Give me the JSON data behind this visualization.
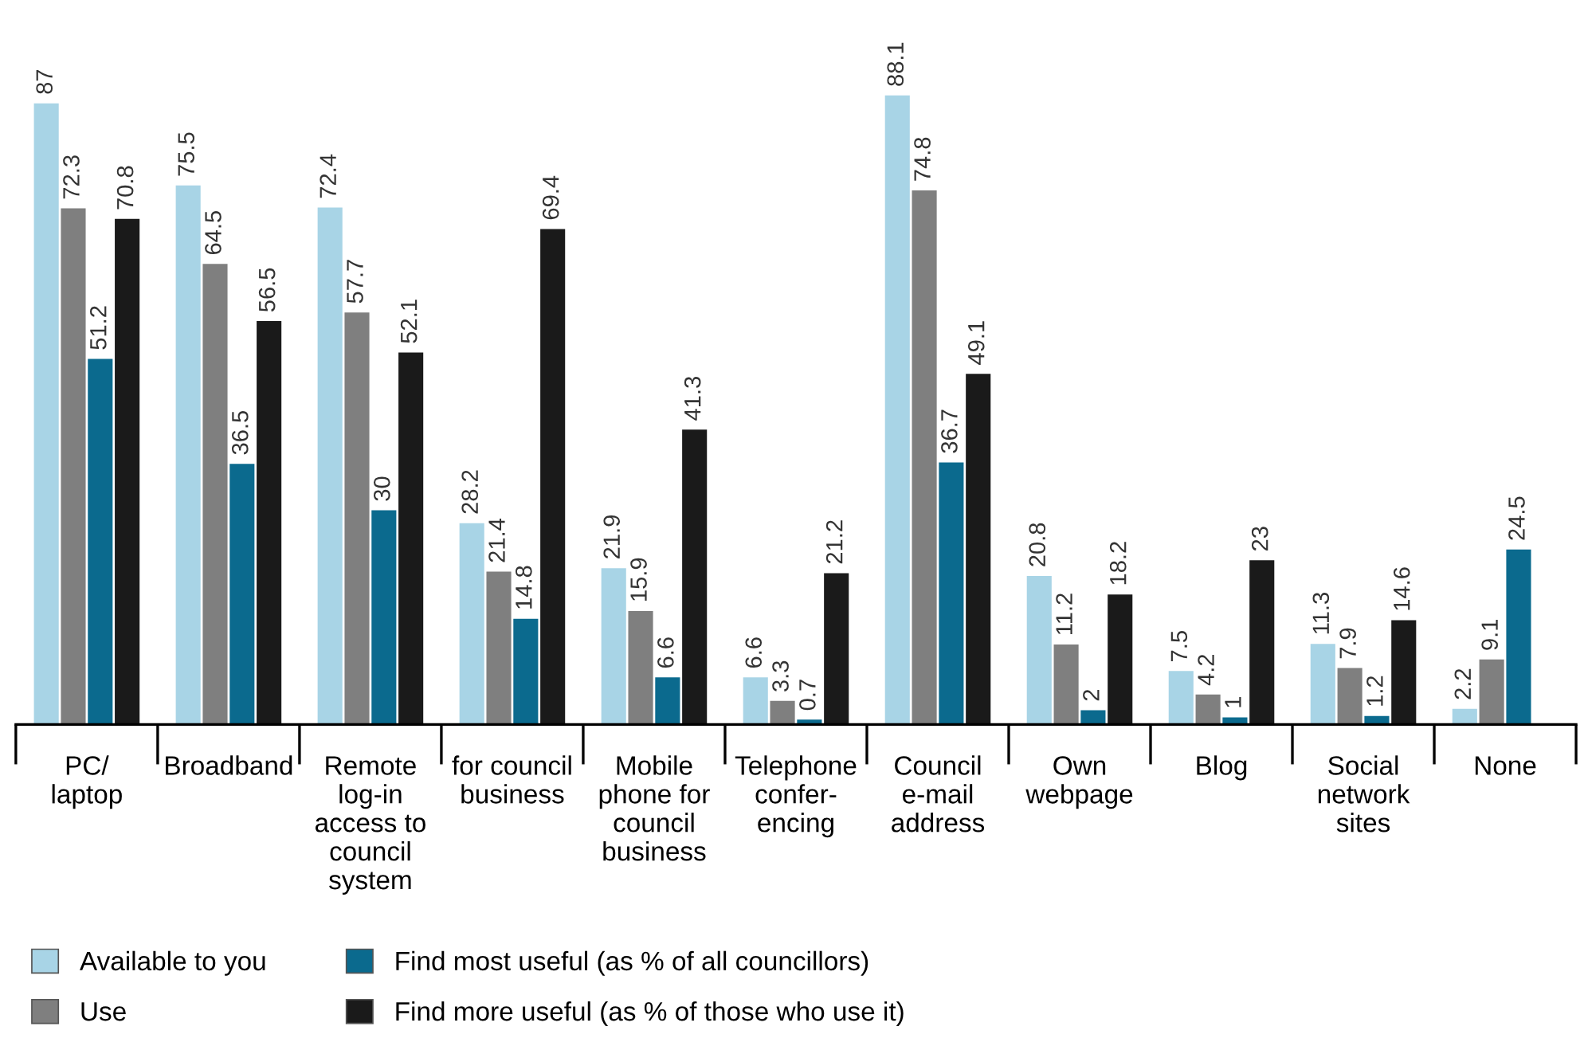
{
  "chart_data": {
    "type": "bar",
    "categories": [
      "PC/\nlaptop",
      "Broadband",
      "Remote\nlog-in\naccess to\ncouncil\nsystem",
      "for council\nbusiness",
      "Mobile\nphone for\ncouncil\nbusiness",
      "Telephone\nconfer-\nencing",
      "Council\ne-mail\naddress",
      "Own\nwebpage",
      "Blog",
      "Social\nnetwork\nsites",
      "None"
    ],
    "series": [
      {
        "name": "Available to you",
        "color": "#a8d4e6",
        "values": [
          87,
          75.5,
          72.4,
          28.2,
          21.9,
          6.6,
          88.1,
          20.8,
          7.5,
          11.3,
          2.2
        ]
      },
      {
        "name": "Use",
        "color": "#7f7f7f",
        "values": [
          72.3,
          64.5,
          57.7,
          21.4,
          15.9,
          3.3,
          74.8,
          11.2,
          4.2,
          7.9,
          9.1
        ]
      },
      {
        "name": "Find most useful (as % of all councillors)",
        "color": "#0b6a8e",
        "values": [
          51.2,
          36.5,
          30,
          14.8,
          6.6,
          0.7,
          36.7,
          2,
          1,
          1.2,
          24.5
        ]
      },
      {
        "name": "Find more useful (as % of those who use it)",
        "color": "#1a1a1a",
        "values": [
          70.8,
          56.5,
          52.1,
          69.4,
          41.3,
          21.2,
          49.1,
          18.2,
          23,
          14.6,
          null
        ]
      }
    ],
    "data_labels": true,
    "legend": "bottom",
    "tick_labels": "x",
    "grid": false
  }
}
